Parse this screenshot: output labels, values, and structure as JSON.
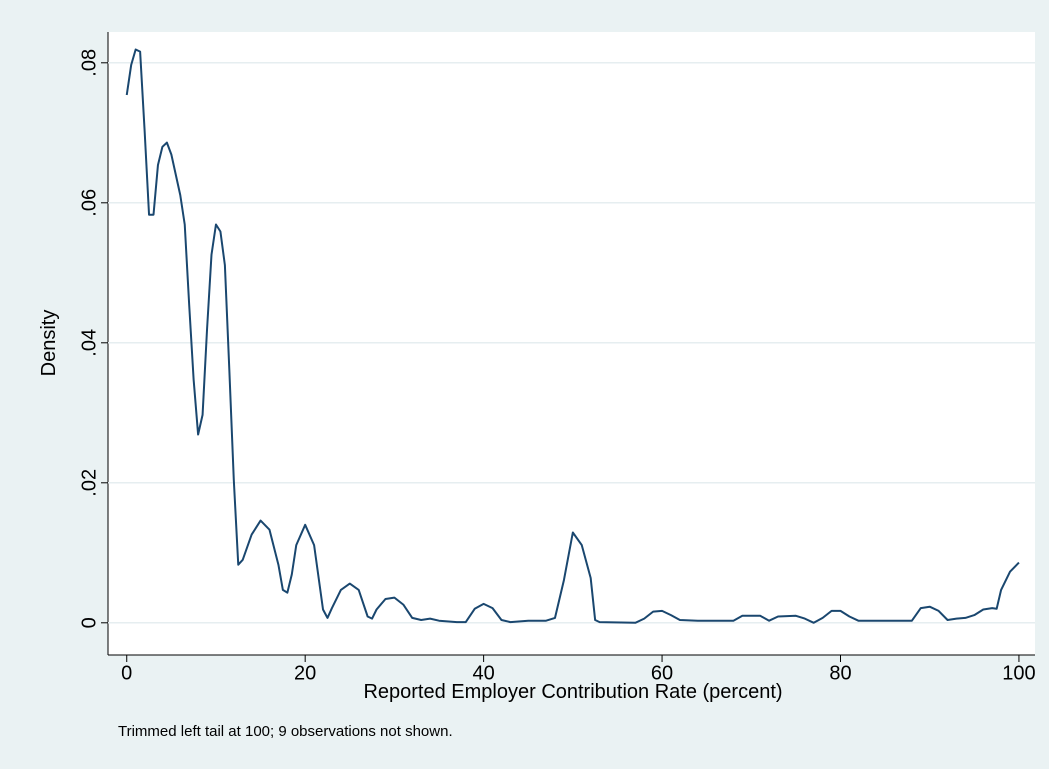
{
  "chart_data": {
    "type": "line",
    "y_label": "Density",
    "x_label": "Reported Employer Contribution Rate (percent)",
    "note": "Trimmed left tail at 100; 9 observations not shown.",
    "xlim": [
      -2.1,
      101.8
    ],
    "ylim": [
      -0.0046,
      0.0844
    ],
    "xticks": [
      0,
      20,
      40,
      60,
      80,
      100
    ],
    "yticks": [
      {
        "value": 0,
        "label": "0"
      },
      {
        "value": 0.02,
        "label": ".02"
      },
      {
        "value": 0.04,
        "label": ".04"
      },
      {
        "value": 0.06,
        "label": ".06"
      },
      {
        "value": 0.08,
        "label": ".08"
      }
    ],
    "grid": true,
    "series": [
      {
        "color": "#1a476f",
        "x": [
          0,
          0.5,
          1,
          1.5,
          2,
          2.5,
          3,
          3.5,
          4,
          4.5,
          5,
          6,
          6.5,
          7,
          7.5,
          8,
          8.5,
          9,
          9.5,
          10,
          10.5,
          11,
          11.5,
          12,
          12.5,
          13,
          14,
          15,
          16,
          17,
          17.5,
          18,
          18.5,
          19,
          20,
          21,
          22,
          22.5,
          23,
          24,
          25,
          26,
          27,
          27.5,
          28,
          29,
          30,
          31,
          32,
          33,
          34,
          35,
          37,
          38,
          39,
          40,
          41,
          42,
          43,
          45,
          47,
          48,
          49,
          50,
          51,
          52,
          52.5,
          53,
          57,
          58,
          59,
          60,
          61,
          62,
          64,
          68,
          69,
          71,
          72,
          73,
          75,
          76,
          77,
          78,
          79,
          80,
          81,
          82,
          88,
          89,
          90,
          91,
          92,
          93,
          94,
          95,
          96,
          97,
          97.5,
          98,
          99,
          100
        ],
        "values": [
          0.0754,
          0.0797,
          0.0819,
          0.0816,
          0.0704,
          0.0583,
          0.0583,
          0.0654,
          0.068,
          0.0686,
          0.0669,
          0.0611,
          0.0569,
          0.0454,
          0.0347,
          0.0269,
          0.0297,
          0.0419,
          0.0526,
          0.0569,
          0.0559,
          0.0511,
          0.0361,
          0.0204,
          0.0083,
          0.009,
          0.0126,
          0.0146,
          0.0133,
          0.0083,
          0.0047,
          0.0043,
          0.0069,
          0.0111,
          0.014,
          0.0111,
          0.0019,
          0.0007,
          0.0021,
          0.0047,
          0.0056,
          0.0047,
          0.0009,
          0.0006,
          0.0019,
          0.0034,
          0.0036,
          0.0026,
          0.0007,
          0.0004,
          0.0006,
          0.0003,
          0.0001,
          0.0001,
          0.002,
          0.0027,
          0.0021,
          0.0004,
          0.0001,
          0.0003,
          0.0003,
          0.0007,
          0.0061,
          0.0129,
          0.0111,
          0.0064,
          0.0004,
          0.0001,
          0,
          0.0006,
          0.0016,
          0.0017,
          0.0011,
          0.0004,
          0.0003,
          0.0003,
          0.001,
          0.001,
          0.0003,
          0.0009,
          0.001,
          0.0006,
          0,
          0.0007,
          0.0017,
          0.0017,
          0.0009,
          0.0003,
          0.0003,
          0.0021,
          0.0023,
          0.0017,
          0.0004,
          0.0006,
          0.0007,
          0.0011,
          0.0019,
          0.0021,
          0.002,
          0.0047,
          0.0073,
          0.0086
        ]
      }
    ]
  }
}
